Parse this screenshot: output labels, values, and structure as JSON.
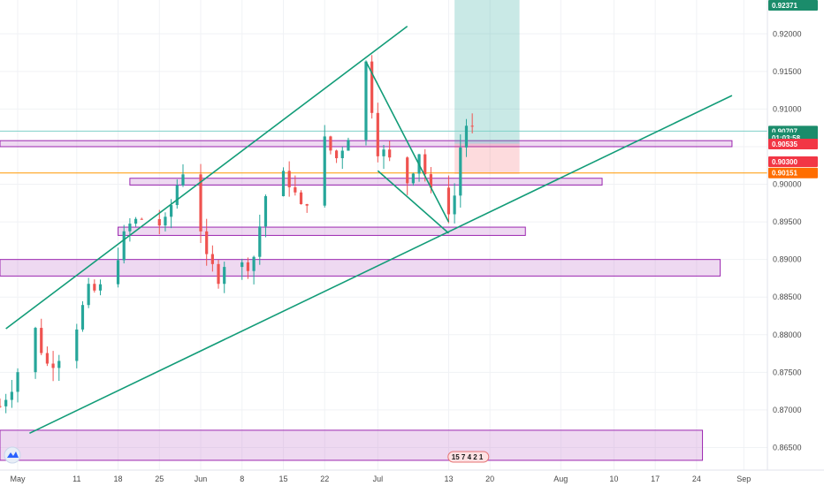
{
  "chart_data": {
    "type": "candlestick",
    "instrument_timeframe": "daily",
    "y_axis": {
      "min": 0.862,
      "max": 0.9245,
      "ticks": [
        0.92,
        0.915,
        0.91,
        0.905,
        0.9,
        0.895,
        0.89,
        0.885,
        0.88,
        0.875,
        0.87,
        0.865
      ],
      "tick_labels": [
        "0.92000",
        "0.91500",
        "0.91000",
        "0.90500",
        "0.90000",
        "0.89500",
        "0.89000",
        "0.88500",
        "0.88000",
        "0.87500",
        "0.87000",
        "0.86500"
      ]
    },
    "x_axis": {
      "start_date": "2020-04-28",
      "end_date": "2020-09-05",
      "ticks": [
        {
          "date": "2020-05-01",
          "label": "May"
        },
        {
          "date": "2020-05-11",
          "label": "11"
        },
        {
          "date": "2020-05-18",
          "label": "18"
        },
        {
          "date": "2020-05-25",
          "label": "25"
        },
        {
          "date": "2020-06-01",
          "label": "Jun"
        },
        {
          "date": "2020-06-08",
          "label": "8"
        },
        {
          "date": "2020-06-15",
          "label": "15"
        },
        {
          "date": "2020-06-22",
          "label": "22"
        },
        {
          "date": "2020-07-01",
          "label": "Jul"
        },
        {
          "date": "2020-07-13",
          "label": "13"
        },
        {
          "date": "2020-07-20",
          "label": "20"
        },
        {
          "date": "2020-08-01",
          "label": "Aug"
        },
        {
          "date": "2020-08-10",
          "label": "10"
        },
        {
          "date": "2020-08-17",
          "label": "17"
        },
        {
          "date": "2020-08-24",
          "label": "24"
        },
        {
          "date": "2020-09-01",
          "label": "Sep"
        }
      ]
    },
    "price_path": [
      [
        "2020-04-28",
        0.8705
      ],
      [
        "2020-04-30",
        0.8735
      ],
      [
        "2020-05-04",
        0.8805
      ],
      [
        "2020-05-06",
        0.876
      ],
      [
        "2020-05-08",
        0.8775
      ],
      [
        "2020-05-11",
        0.8815
      ],
      [
        "2020-05-13",
        0.8855
      ],
      [
        "2020-05-15",
        0.886
      ],
      [
        "2020-05-18",
        0.891
      ],
      [
        "2020-05-20",
        0.8945
      ],
      [
        "2020-05-22",
        0.8955
      ],
      [
        "2020-05-26",
        0.8945
      ],
      [
        "2020-05-28",
        0.9
      ],
      [
        "2020-05-30",
        0.904
      ],
      [
        "2020-06-02",
        0.8895
      ],
      [
        "2020-06-04",
        0.888
      ],
      [
        "2020-06-06",
        0.8915
      ],
      [
        "2020-06-08",
        0.889
      ],
      [
        "2020-06-10",
        0.8905
      ],
      [
        "2020-06-12",
        0.8985
      ],
      [
        "2020-06-14",
        0.901
      ],
      [
        "2020-06-16",
        0.9005
      ],
      [
        "2020-06-18",
        0.8965
      ],
      [
        "2020-06-20",
        0.9
      ],
      [
        "2020-06-22",
        0.9055
      ],
      [
        "2020-06-24",
        0.9035
      ],
      [
        "2020-06-27",
        0.9085
      ],
      [
        "2020-06-29",
        0.916
      ],
      [
        "2020-07-01",
        0.905
      ],
      [
        "2020-07-03",
        0.903
      ],
      [
        "2020-07-06",
        0.9005
      ],
      [
        "2020-07-08",
        0.9045
      ],
      [
        "2020-07-10",
        0.8985
      ],
      [
        "2020-07-12",
        0.8955
      ],
      [
        "2020-07-14",
        0.8985
      ],
      [
        "2020-07-15",
        0.905
      ],
      [
        "2020-07-16",
        0.908
      ],
      [
        "2020-07-17",
        0.907
      ]
    ],
    "price_tags": [
      {
        "label": "0.92371",
        "price": 0.9242,
        "color": "#1b8c6b"
      },
      {
        "label": "0.90707",
        "price": 0.90707,
        "color": "#1b8c6b"
      },
      {
        "label": "01:03:58",
        "price": 0.9062,
        "color": "#1b8c6b"
      },
      {
        "label": "0.90535",
        "price": 0.90535,
        "color": "#f23645"
      },
      {
        "label": "0.90300",
        "price": 0.903,
        "color": "#f23645"
      },
      {
        "label": "0.90151",
        "price": 0.90151,
        "color": "#ff6d00"
      }
    ],
    "horizontal_lines": [
      {
        "price": 0.90707,
        "color": "#7fd0c8"
      },
      {
        "price": 0.90151,
        "color": "#ff9800"
      }
    ],
    "zones": [
      {
        "from": "2020-04-28",
        "to": "2020-08-30",
        "top": 0.9058,
        "bottom": 0.905
      },
      {
        "from": "2020-05-20",
        "to": "2020-08-08",
        "top": 0.9008,
        "bottom": 0.8999
      },
      {
        "from": "2020-05-18",
        "to": "2020-07-26",
        "top": 0.8943,
        "bottom": 0.8932
      },
      {
        "from": "2020-04-28",
        "to": "2020-08-28",
        "top": 0.89,
        "bottom": 0.8878
      },
      {
        "from": "2020-04-28",
        "to": "2020-08-25",
        "top": 0.8673,
        "bottom": 0.8633
      }
    ],
    "trendlines": [
      {
        "p1": [
          "2020-04-29",
          0.8808
        ],
        "p2": [
          "2020-07-06",
          0.921
        ]
      },
      {
        "p1": [
          "2020-05-03",
          0.8669
        ],
        "p2": [
          "2020-08-30",
          0.9118
        ]
      },
      {
        "p1": [
          "2020-06-29",
          0.9163
        ],
        "p2": [
          "2020-07-13",
          0.895
        ]
      },
      {
        "p1": [
          "2020-07-01",
          0.9018
        ],
        "p2": [
          "2020-07-13",
          0.8935
        ]
      }
    ],
    "position": {
      "from": "2020-07-14",
      "to": "2020-07-25",
      "entry": 0.9054,
      "target": 0.9245,
      "stop": 0.903,
      "profit_color": "rgba(38,166,154,0.25)",
      "loss_color": "rgba(242,54,69,0.18)"
    },
    "event_markers_label": "15 7 4 2 1",
    "colors": {
      "up": "#26a69a",
      "down": "#ef5350",
      "trend": "#129c78",
      "zone_stroke": "#9c27b0"
    }
  }
}
